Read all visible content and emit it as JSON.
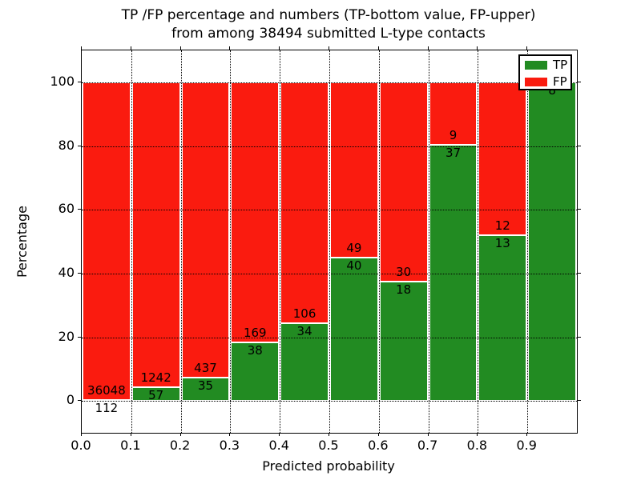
{
  "title": {
    "line1": "TP /FP percentage and numbers (TP-bottom value, FP-upper)",
    "line2": "from among 38494 submitted L-type contacts"
  },
  "chart_data": {
    "type": "bar",
    "subtype": "stacked-100-percent",
    "title": "TP /FP percentage and numbers (TP-bottom value, FP-upper)\nfrom among 38494 submitted L-type contacts",
    "xlabel": "Predicted probability",
    "ylabel": "Percentage",
    "total_contacts": 38494,
    "xlim": [
      0.0,
      1.0
    ],
    "ylim": [
      -10,
      110
    ],
    "grid": "dotted",
    "x_ticks": [
      "0.0",
      "0.1",
      "0.2",
      "0.3",
      "0.4",
      "0.5",
      "0.6",
      "0.7",
      "0.8",
      "0.9"
    ],
    "x_tick_values": [
      0.0,
      0.1,
      0.2,
      0.3,
      0.4,
      0.5,
      0.6,
      0.7,
      0.8,
      0.9
    ],
    "y_ticks": [
      "0",
      "20",
      "40",
      "60",
      "80",
      "100"
    ],
    "y_tick_values": [
      0,
      20,
      40,
      60,
      80,
      100
    ],
    "categories": [
      "0.0-0.1",
      "0.1-0.2",
      "0.2-0.3",
      "0.3-0.4",
      "0.4-0.5",
      "0.5-0.6",
      "0.6-0.7",
      "0.7-0.8",
      "0.8-0.9",
      "0.9-1.0"
    ],
    "series": [
      {
        "name": "TP",
        "color": "#228b22",
        "counts": [
          112,
          57,
          35,
          38,
          34,
          40,
          18,
          37,
          13,
          8
        ],
        "percent": [
          0.31,
          4.39,
          7.42,
          18.36,
          24.29,
          44.94,
          37.5,
          80.43,
          52.0,
          100.0
        ]
      },
      {
        "name": "FP",
        "color": "#fa1b0f",
        "counts": [
          36048,
          1242,
          437,
          169,
          106,
          49,
          30,
          9,
          12,
          0
        ],
        "percent": [
          99.69,
          95.61,
          92.58,
          81.64,
          75.71,
          55.06,
          62.5,
          19.57,
          48.0,
          0.0
        ]
      }
    ],
    "legend": {
      "position": "upper-right",
      "entries": [
        {
          "label": "TP",
          "color": "#228b22"
        },
        {
          "label": "FP",
          "color": "#fa1b0f"
        }
      ]
    }
  }
}
